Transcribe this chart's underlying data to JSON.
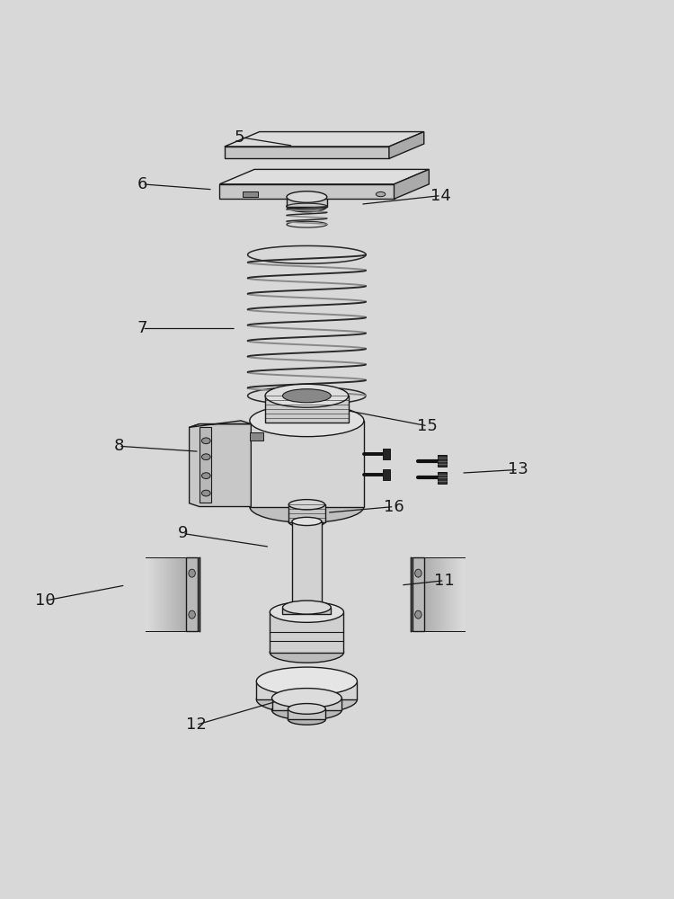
{
  "background_color": "#d8d8d8",
  "line_color": "#1a1a1a",
  "figsize": [
    7.5,
    10.0
  ],
  "dpi": 100,
  "labels": {
    "5": {
      "lpos": [
        0.355,
        0.965
      ],
      "tpos": [
        0.435,
        0.952
      ]
    },
    "6": {
      "lpos": [
        0.21,
        0.895
      ],
      "tpos": [
        0.315,
        0.887
      ]
    },
    "7": {
      "lpos": [
        0.21,
        0.68
      ],
      "tpos": [
        0.35,
        0.68
      ]
    },
    "8": {
      "lpos": [
        0.175,
        0.505
      ],
      "tpos": [
        0.295,
        0.497
      ]
    },
    "9": {
      "lpos": [
        0.27,
        0.375
      ],
      "tpos": [
        0.4,
        0.355
      ]
    },
    "10": {
      "lpos": [
        0.065,
        0.275
      ],
      "tpos": [
        0.185,
        0.298
      ]
    },
    "11": {
      "lpos": [
        0.66,
        0.305
      ],
      "tpos": [
        0.595,
        0.298
      ]
    },
    "12": {
      "lpos": [
        0.29,
        0.09
      ],
      "tpos": [
        0.41,
        0.125
      ]
    },
    "13": {
      "lpos": [
        0.77,
        0.47
      ],
      "tpos": [
        0.685,
        0.465
      ]
    },
    "14": {
      "lpos": [
        0.655,
        0.878
      ],
      "tpos": [
        0.535,
        0.865
      ]
    },
    "15": {
      "lpos": [
        0.635,
        0.535
      ],
      "tpos": [
        0.515,
        0.558
      ]
    },
    "16": {
      "lpos": [
        0.585,
        0.415
      ],
      "tpos": [
        0.485,
        0.406
      ]
    }
  }
}
